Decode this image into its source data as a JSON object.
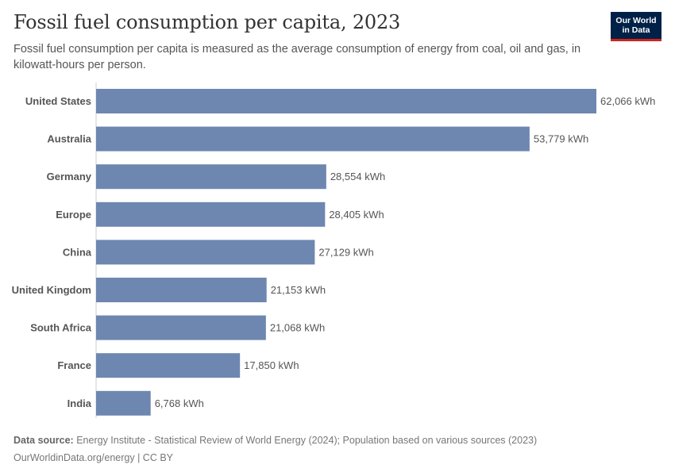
{
  "header": {
    "title": "Fossil fuel consumption per capita, 2023",
    "subtitle": "Fossil fuel consumption per capita is measured as the average consumption of energy from coal, oil and gas, in kilowatt-hours per person.",
    "logo_text": "Our World in Data"
  },
  "chart_data": {
    "type": "bar",
    "orientation": "horizontal",
    "categories": [
      "United States",
      "Australia",
      "Germany",
      "Europe",
      "China",
      "United Kingdom",
      "South Africa",
      "France",
      "India"
    ],
    "values": [
      62066,
      53779,
      28554,
      28405,
      27129,
      21153,
      21068,
      17850,
      6768
    ],
    "value_labels": [
      "62,066 kWh",
      "53,779 kWh",
      "28,554 kWh",
      "28,405 kWh",
      "27,129 kWh",
      "21,153 kWh",
      "21,068 kWh",
      "17,850 kWh",
      "6,768 kWh"
    ],
    "unit": "kWh",
    "bar_color": "#6d87b0",
    "xlim": [
      0,
      62066
    ],
    "grid": false,
    "legend": "none"
  },
  "footer": {
    "source_label": "Data source:",
    "source_text": "Energy Institute - Statistical Review of World Energy (2024); Population based on various sources (2023)",
    "url_text": "OurWorldinData.org/energy | CC BY"
  }
}
